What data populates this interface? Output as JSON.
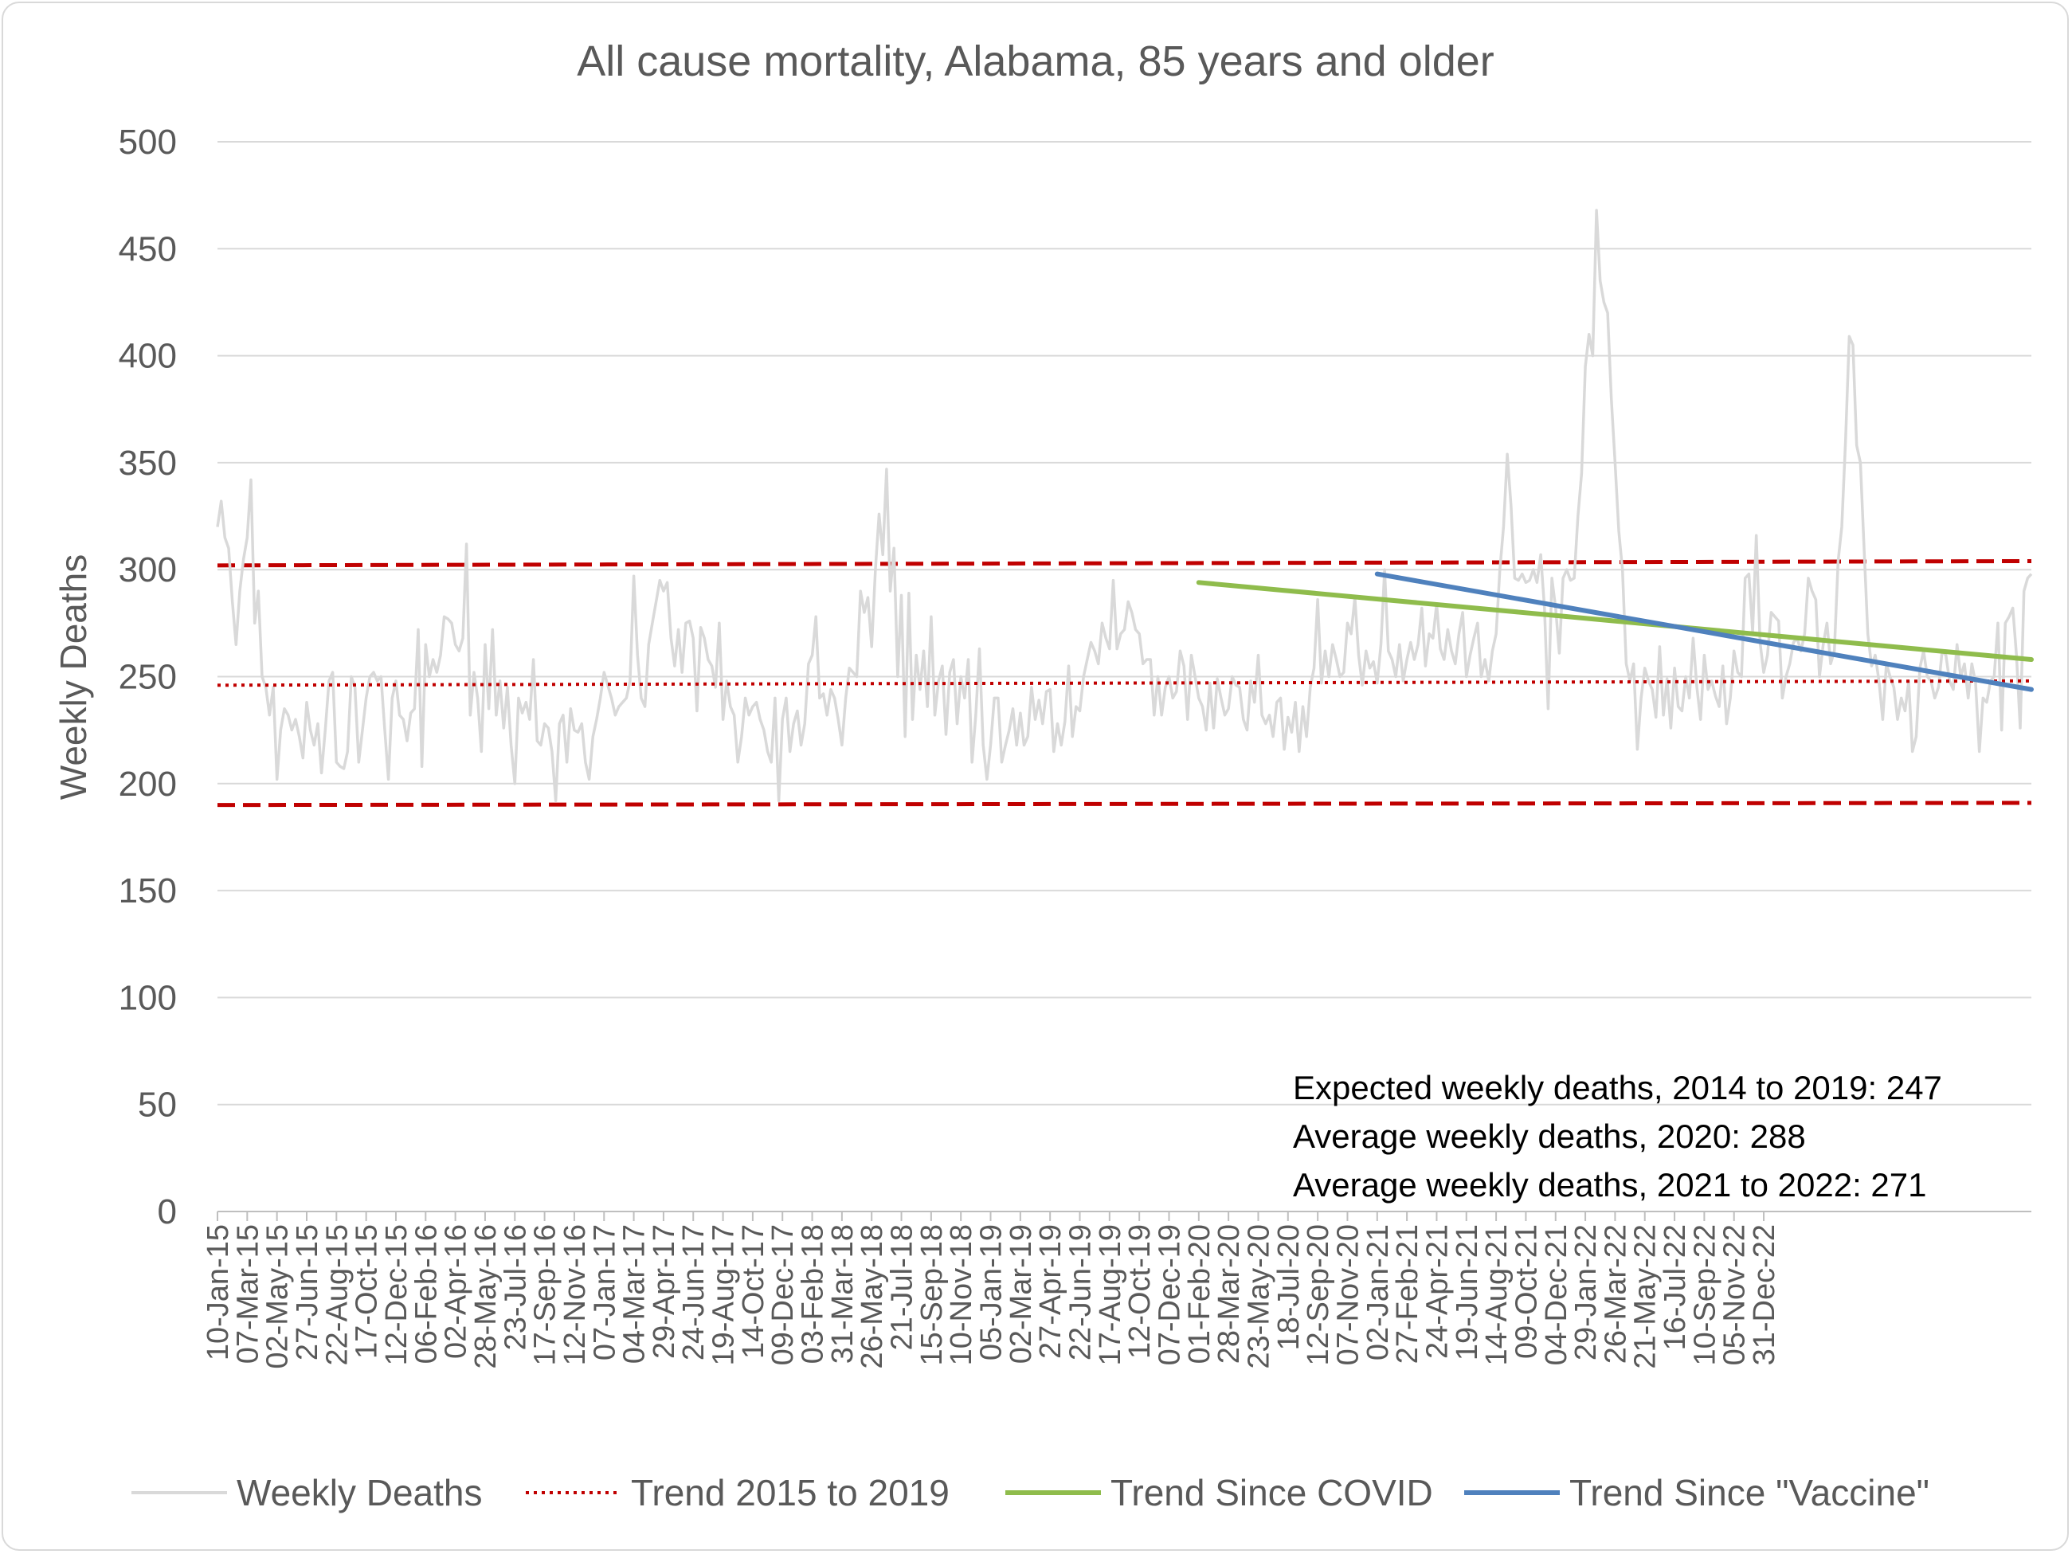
{
  "chart_data": {
    "type": "line",
    "title": "All cause mortality, Alabama, 85 years and older",
    "xlabel": "",
    "ylabel": "Weekly Deaths",
    "ylim": [
      0,
      500
    ],
    "yticks": [
      "0",
      "50",
      "100",
      "150",
      "200",
      "250",
      "300",
      "350",
      "400",
      "450",
      "500"
    ],
    "xticks": [
      "10-Jan-15",
      "07-Mar-15",
      "02-May-15",
      "27-Jun-15",
      "22-Aug-15",
      "17-Oct-15",
      "12-Dec-15",
      "06-Feb-16",
      "02-Apr-16",
      "28-May-16",
      "23-Jul-16",
      "17-Sep-16",
      "12-Nov-16",
      "07-Jan-17",
      "04-Mar-17",
      "29-Apr-17",
      "24-Jun-17",
      "19-Aug-17",
      "14-Oct-17",
      "09-Dec-17",
      "03-Feb-18",
      "31-Mar-18",
      "26-May-18",
      "21-Jul-18",
      "15-Sep-18",
      "10-Nov-18",
      "05-Jan-19",
      "02-Mar-19",
      "27-Apr-19",
      "22-Jun-19",
      "17-Aug-19",
      "12-Oct-19",
      "07-Dec-19",
      "01-Feb-20",
      "28-Mar-20",
      "23-May-20",
      "18-Jul-20",
      "12-Sep-20",
      "07-Nov-20",
      "02-Jan-21",
      "27-Feb-21",
      "24-Apr-21",
      "19-Jun-21",
      "14-Aug-21",
      "09-Oct-21",
      "04-Dec-21",
      "29-Jan-22",
      "26-Mar-22",
      "21-May-22",
      "16-Jul-22",
      "10-Sep-22",
      "05-Nov-22",
      "31-Dec-22"
    ],
    "grid": true,
    "legend_position": "bottom",
    "series": [
      {
        "name": "Weekly Deaths",
        "color": "#d9d9d9",
        "style": "solid",
        "values": [
          320,
          332,
          315,
          310,
          285,
          265,
          290,
          305,
          315,
          342,
          275,
          290,
          250,
          245,
          232,
          245,
          202,
          225,
          235,
          232,
          225,
          230,
          222,
          212,
          238,
          225,
          218,
          228,
          205,
          225,
          248,
          252,
          210,
          208,
          207,
          215,
          250,
          245,
          210,
          225,
          240,
          250,
          252,
          248,
          250,
          225,
          202,
          240,
          248,
          232,
          230,
          220,
          233,
          235,
          272,
          208,
          265,
          250,
          258,
          252,
          260,
          278,
          277,
          275,
          265,
          262,
          268,
          312,
          232,
          252,
          240,
          215,
          265,
          235,
          272,
          232,
          248,
          226,
          245,
          218,
          200,
          240,
          233,
          238,
          230,
          258,
          220,
          218,
          228,
          226,
          215,
          192,
          228,
          232,
          210,
          235,
          225,
          224,
          228,
          210,
          202,
          222,
          230,
          240,
          252,
          246,
          240,
          232,
          236,
          238,
          240,
          248,
          297,
          260,
          240,
          236,
          265,
          275,
          285,
          295,
          290,
          294,
          268,
          255,
          272,
          252,
          275,
          276,
          268,
          234,
          273,
          268,
          258,
          255,
          245,
          275,
          230,
          248,
          236,
          232,
          210,
          222,
          240,
          232,
          236,
          238,
          230,
          225,
          215,
          210,
          240,
          192,
          230,
          240,
          215,
          228,
          234,
          218,
          228,
          256,
          260,
          278,
          240,
          242,
          232,
          244,
          240,
          230,
          218,
          240,
          254,
          252,
          250,
          290,
          280,
          287,
          264,
          300,
          326,
          307,
          347,
          290,
          310,
          250,
          288,
          222,
          289,
          230,
          260,
          244,
          262,
          236,
          278,
          232,
          248,
          255,
          223,
          252,
          258,
          228,
          250,
          240,
          258,
          210,
          232,
          263,
          218,
          202,
          218,
          240,
          240,
          210,
          218,
          225,
          235,
          218,
          233,
          218,
          222,
          245,
          230,
          239,
          228,
          243,
          244,
          215,
          228,
          218,
          229,
          255,
          222,
          236,
          234,
          250,
          258,
          266,
          262,
          256,
          275,
          268,
          263,
          295,
          263,
          270,
          272,
          285,
          280,
          272,
          270,
          256,
          258,
          258,
          232,
          250,
          232,
          245,
          250,
          240,
          243,
          262,
          255,
          230,
          260,
          250,
          240,
          236,
          225,
          247,
          226,
          249,
          240,
          232,
          235,
          250,
          246,
          245,
          230,
          225,
          248,
          238,
          260,
          232,
          228,
          232,
          222,
          238,
          240,
          216,
          231,
          224,
          238,
          215,
          236,
          222,
          245,
          254,
          286,
          247,
          262,
          250,
          265,
          258,
          250,
          252,
          275,
          270,
          287,
          260,
          246,
          262,
          254,
          257,
          247,
          265,
          300,
          262,
          258,
          250,
          265,
          248,
          258,
          266,
          258,
          265,
          282,
          255,
          270,
          268,
          284,
          263,
          258,
          272,
          262,
          256,
          270,
          280,
          250,
          260,
          268,
          275,
          250,
          258,
          248,
          262,
          270,
          300,
          320,
          354,
          330,
          296,
          295,
          298,
          294,
          295,
          300,
          294,
          307,
          282,
          235,
          296,
          282,
          261,
          296,
          300,
          295,
          296,
          325,
          345,
          395,
          410,
          400,
          468,
          435,
          425,
          420,
          380,
          350,
          318,
          300,
          256,
          248,
          256,
          216,
          240,
          254,
          248,
          244,
          231,
          264,
          232,
          249,
          226,
          254,
          236,
          234,
          250,
          240,
          268,
          245,
          230,
          260,
          244,
          248,
          241,
          236,
          255,
          228,
          240,
          262,
          252,
          250,
          296,
          298,
          271,
          316,
          266,
          252,
          260,
          280,
          278,
          276,
          240,
          250,
          256,
          266,
          268,
          262,
          270,
          296,
          290,
          286,
          250,
          265,
          275,
          256,
          262,
          304,
          320,
          360,
          409,
          405,
          358,
          350,
          310,
          270,
          255,
          260,
          248,
          230,
          256,
          250,
          245,
          230,
          240,
          234,
          248,
          215,
          222,
          254,
          262,
          250,
          248,
          240,
          245,
          262,
          260,
          248,
          244,
          265,
          250,
          256,
          240,
          256,
          247,
          215,
          240,
          238,
          248,
          250,
          275,
          225,
          275,
          278,
          282,
          260,
          226,
          290,
          296,
          298
        ]
      },
      {
        "name": "Trend 2015 to 2019",
        "color": "#c00000",
        "style": "dotted",
        "start": 246,
        "end": 248
      },
      {
        "name": "Trend Since COVID",
        "color": "#8fbc4c",
        "style": "solid",
        "start_label": "01-Feb-20",
        "start": 294,
        "end": 258
      },
      {
        "name": "Trend Since \"Vaccine\"",
        "color": "#4f81bd",
        "style": "solid",
        "start_label": "02-Jan-21",
        "start": 298,
        "end": 244
      }
    ],
    "bands": [
      {
        "color": "#c00000",
        "style": "dashed",
        "start": 302,
        "end": 304
      },
      {
        "color": "#c00000",
        "style": "dashed",
        "start": 190,
        "end": 191
      }
    ],
    "annotations": [
      "Expected weekly deaths, 2014 to 2019: 247",
      "Average weekly deaths, 2020: 288",
      "Average weekly deaths, 2021 to 2022: 271"
    ]
  }
}
